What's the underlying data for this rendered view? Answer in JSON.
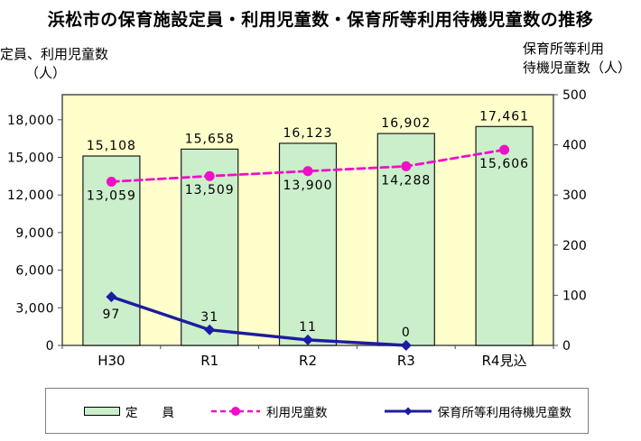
{
  "title": "浜松市の保育施設定員・利用児童数・保育所等利用待機児童数の推移",
  "left_axis_title": {
    "line1": "定員、利用児童数",
    "line2": "（人）"
  },
  "right_axis_title": {
    "line1": "保育所等利用",
    "line2": "待機児童数（人）"
  },
  "legend": {
    "items": [
      {
        "label": "定　　員"
      },
      {
        "label": "利用児童数"
      },
      {
        "label": "保育所等利用待機児童数"
      }
    ]
  },
  "chart_data": {
    "type": "combo",
    "subtypes": [
      "bar",
      "line",
      "line"
    ],
    "categories": [
      "H30",
      "R1",
      "R2",
      "R3",
      "R4見込"
    ],
    "series": [
      {
        "name": "定員",
        "type": "bar",
        "axis": "left",
        "color": "#cbeecb",
        "border_color": "#1a1a1a",
        "values": [
          15108,
          15658,
          16123,
          16902,
          17461
        ],
        "labels": [
          "15,108",
          "15,658",
          "16,123",
          "16,902",
          "17,461"
        ]
      },
      {
        "name": "利用児童数",
        "type": "line",
        "style": "dashed",
        "marker": "circle",
        "axis": "left",
        "color": "#ee10c8",
        "values": [
          13059,
          13509,
          13900,
          14288,
          15606
        ],
        "labels": [
          "13,059",
          "13,509",
          "13,900",
          "14,288",
          "15,606"
        ],
        "label_positions": [
          "below",
          "below",
          "below",
          "below",
          "below"
        ]
      },
      {
        "name": "保育所等利用待機児童数",
        "type": "line",
        "style": "solid",
        "marker": "diamond",
        "axis": "right",
        "color": "#1c1ca0",
        "values": [
          97,
          31,
          11,
          0,
          null
        ],
        "labels": [
          "97",
          "31",
          "11",
          "0",
          ""
        ],
        "label_positions": [
          "below",
          "above",
          "above",
          "above",
          ""
        ]
      }
    ],
    "left_axis": {
      "min": 0,
      "max": 20000,
      "tick_values": [
        0,
        3000,
        6000,
        9000,
        12000,
        15000,
        18000
      ],
      "tick_labels": [
        "0",
        "3,000",
        "6,000",
        "9,000",
        "12,000",
        "15,000",
        "18,000"
      ]
    },
    "right_axis": {
      "min": 0,
      "max": 500,
      "tick_values": [
        0,
        100,
        200,
        300,
        400,
        500
      ],
      "tick_labels": [
        "0",
        "100",
        "200",
        "300",
        "400",
        "500"
      ]
    },
    "plot_bg": "#ffffcc",
    "plot_border": "#4d4d4d",
    "grid": false,
    "legend_position": "bottom"
  }
}
